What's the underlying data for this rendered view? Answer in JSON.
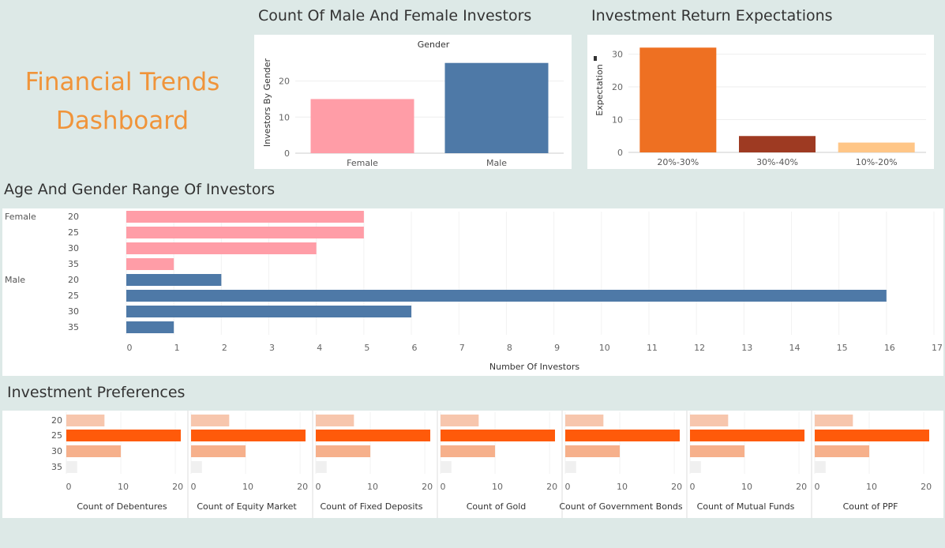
{
  "dashboard_title": "Financial Trends Dashboard",
  "colors": {
    "background": "#dde9e7",
    "female": "#ff9da7",
    "male": "#4e79a7",
    "accent_title": "#f0943a"
  },
  "chart_data": [
    {
      "id": "gender",
      "type": "bar",
      "title": "Count Of Male And Female Investors",
      "subtitle": "Gender",
      "ylabel": "Investors By Gender",
      "xlabel": "",
      "categories": [
        "Female",
        "Male"
      ],
      "values": [
        15,
        25
      ],
      "colors": [
        "#ff9da7",
        "#4e79a7"
      ],
      "yticks": [
        0,
        10,
        20
      ],
      "ylim": [
        0,
        28
      ],
      "grid": true
    },
    {
      "id": "expectations",
      "type": "bar",
      "title": "Investment Return Expectations",
      "ylabel": "Expectation",
      "xlabel": "",
      "categories": [
        "20%-30%",
        "30%-40%",
        "10%-20%"
      ],
      "values": [
        32,
        5,
        3
      ],
      "colors": [
        "#ee7022",
        "#9e3a22",
        "#ffc687"
      ],
      "yticks": [
        0,
        10,
        20,
        30
      ],
      "ylim": [
        0,
        34
      ],
      "grid": true
    },
    {
      "id": "age_gender",
      "type": "bar",
      "orientation": "horizontal",
      "title": "Age And Gender Range Of Investors",
      "xlabel": "Number Of Investors",
      "groups": [
        {
          "name": "Female",
          "color": "#ff9da7",
          "ages": [
            "20",
            "25",
            "30",
            "35"
          ],
          "values": [
            5,
            5,
            4,
            1
          ]
        },
        {
          "name": "Male",
          "color": "#4e79a7",
          "ages": [
            "20",
            "25",
            "30",
            "35"
          ],
          "values": [
            2,
            16,
            6,
            1
          ]
        }
      ],
      "xticks": [
        0,
        1,
        2,
        3,
        4,
        5,
        6,
        7,
        8,
        9,
        10,
        11,
        12,
        13,
        14,
        15,
        16,
        17
      ],
      "xlim": [
        0,
        17
      ],
      "grid": true
    },
    {
      "id": "preferences",
      "type": "bar",
      "orientation": "horizontal",
      "title": "Investment Preferences",
      "categories": [
        "20",
        "25",
        "30",
        "35"
      ],
      "xticks": [
        0,
        10,
        20
      ],
      "xlim": [
        0,
        21
      ],
      "colors": [
        "#f7c6ad",
        "#ff5a0a",
        "#f6b08b",
        "#f0f0f0"
      ],
      "series": [
        {
          "name": "Count of Debentures",
          "values": [
            7,
            21,
            10,
            2
          ]
        },
        {
          "name": "Count of Equity Market",
          "values": [
            7,
            21,
            10,
            2
          ]
        },
        {
          "name": "Count of Fixed Deposits",
          "values": [
            7,
            21,
            10,
            2
          ]
        },
        {
          "name": "Count of Gold",
          "values": [
            7,
            21,
            10,
            2
          ]
        },
        {
          "name": "Count of Government Bonds",
          "values": [
            7,
            21,
            10,
            2
          ]
        },
        {
          "name": "Count of Mutual Funds",
          "values": [
            7,
            21,
            10,
            2
          ]
        },
        {
          "name": "Count of PPF",
          "values": [
            7,
            21,
            10,
            2
          ]
        }
      ]
    }
  ]
}
